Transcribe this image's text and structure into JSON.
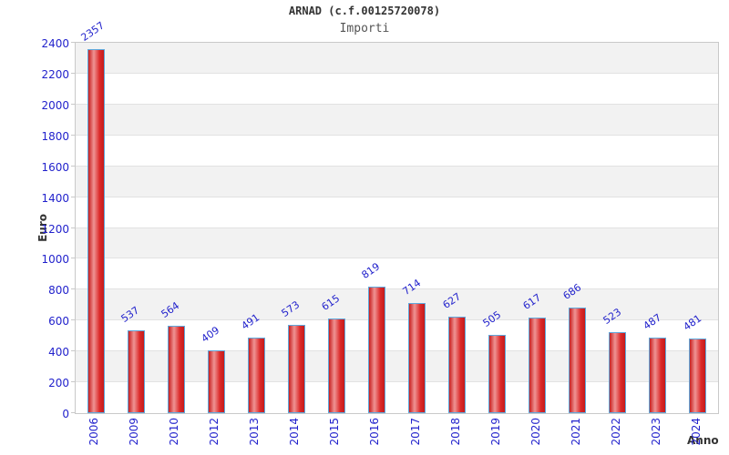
{
  "header": {
    "title": "ARNAD (c.f.00125720078)",
    "subtitle": "Importi"
  },
  "axes": {
    "y_title": "Euro",
    "x_title": "Anno"
  },
  "chart_data": {
    "type": "bar",
    "title": "ARNAD (c.f.00125720078)",
    "subtitle": "Importi",
    "xlabel": "Anno",
    "ylabel": "Euro",
    "categories": [
      "2006",
      "2009",
      "2010",
      "2012",
      "2013",
      "2014",
      "2015",
      "2016",
      "2017",
      "2018",
      "2019",
      "2020",
      "2021",
      "2022",
      "2023",
      "2024"
    ],
    "values": [
      2357,
      537,
      564,
      409,
      491,
      573,
      615,
      819,
      714,
      627,
      505,
      617,
      686,
      523,
      487,
      481
    ],
    "ylim": [
      0,
      2400
    ],
    "y_ticks": [
      0,
      200,
      400,
      600,
      800,
      1000,
      1200,
      1400,
      1600,
      1800,
      2000,
      2200,
      2400
    ],
    "grid": "alternating-horizontal-bands",
    "legend": "none",
    "colors": {
      "tick_label": "#2222cc",
      "value_label": "#2222cc",
      "bar_border": "#5fa8dc",
      "bar_red_dark": "#c81f1f",
      "bar_red_light": "#ef9494",
      "band_gray": "#f2f2f2",
      "band_white": "#ffffff",
      "gridline": "#e2e2e2",
      "plot_border": "#c9c9c9",
      "title_color": "#333333",
      "subtitle_color": "#555555",
      "axis_title_color": "#333333"
    }
  }
}
